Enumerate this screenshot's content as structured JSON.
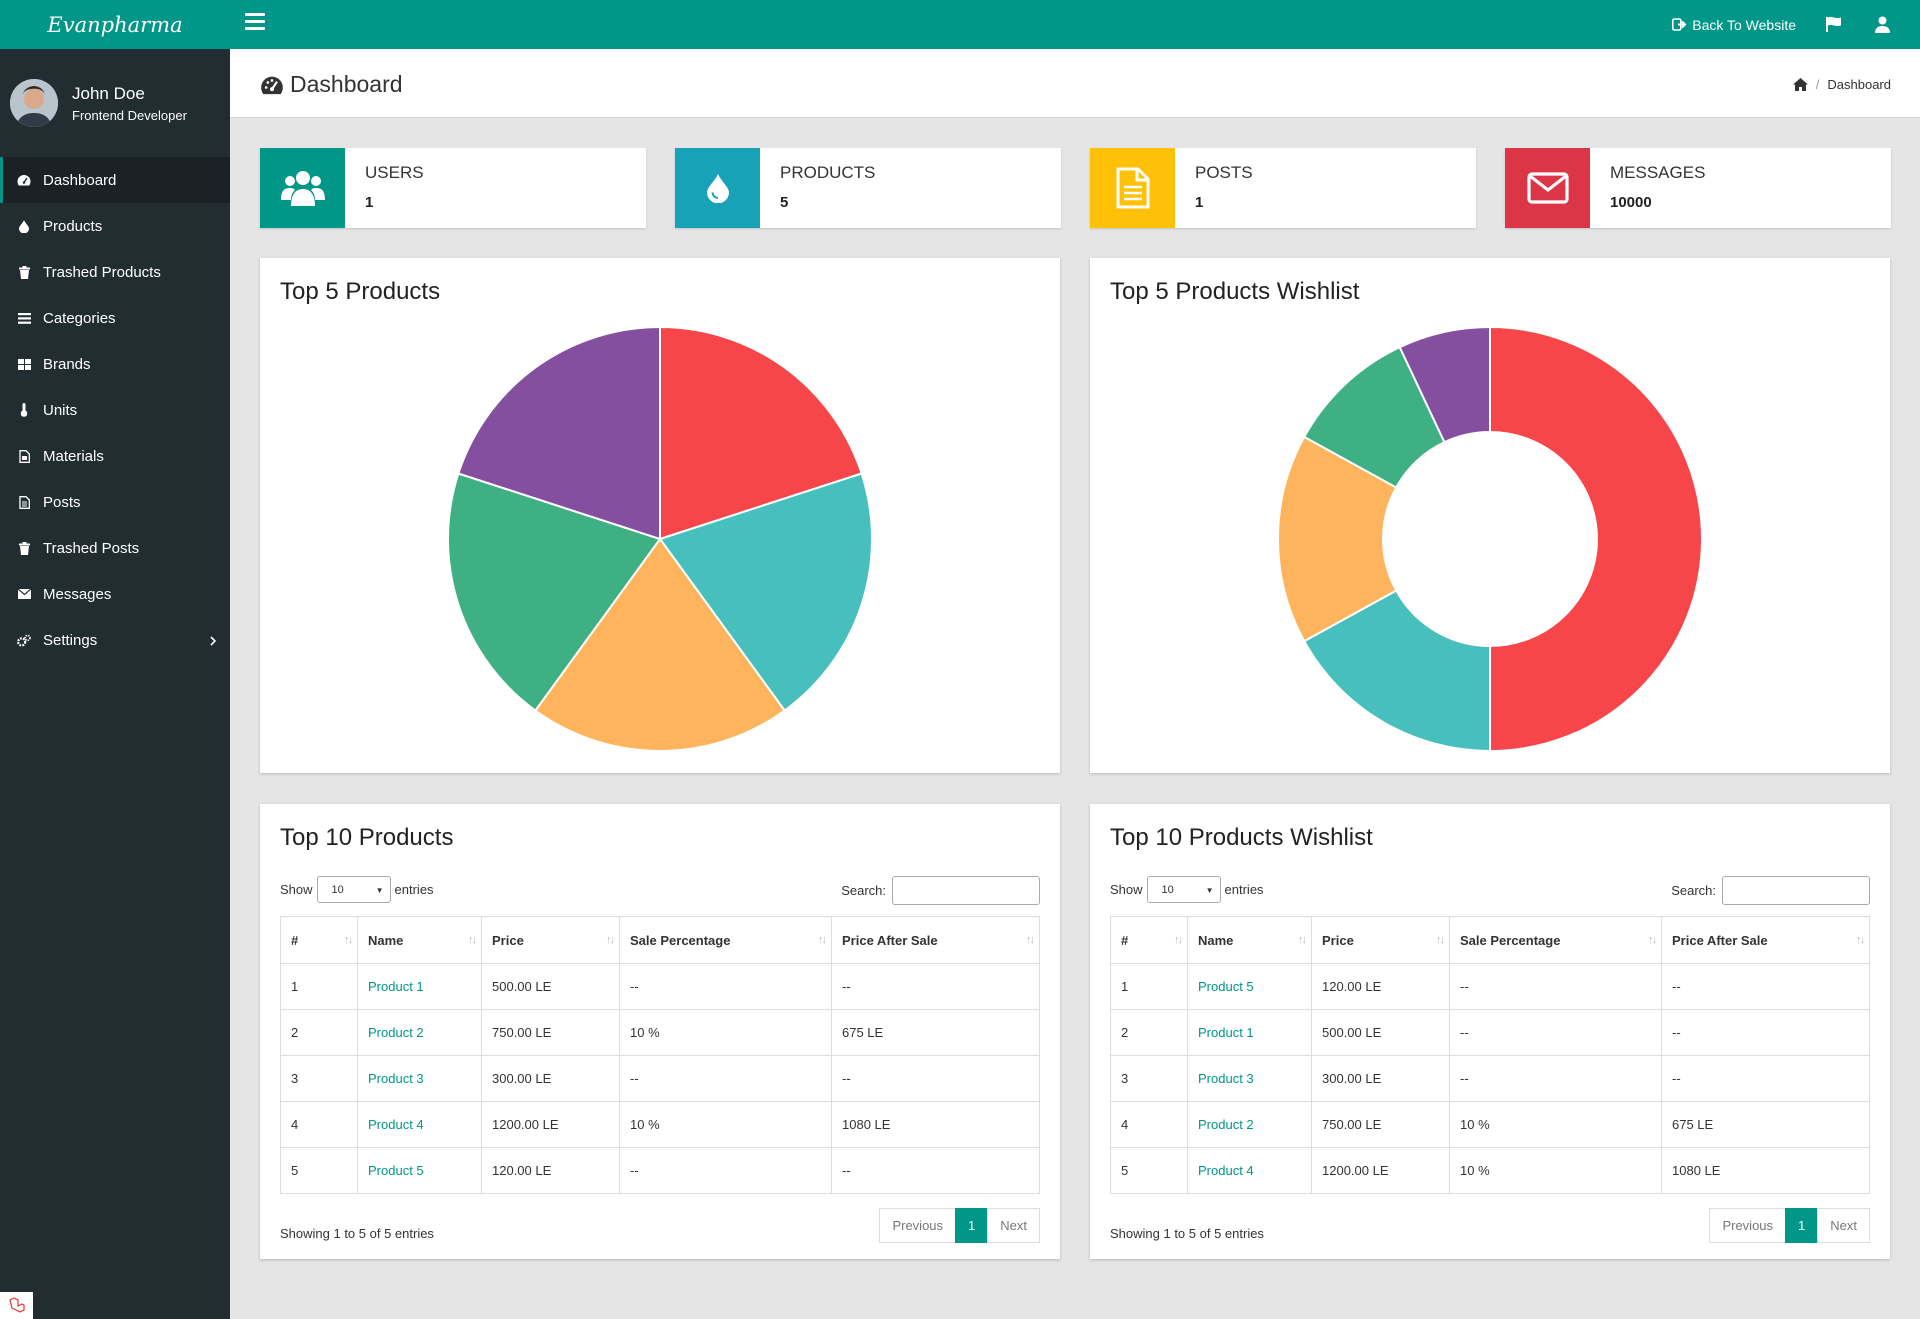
{
  "brand": "Evanpharma",
  "topbar": {
    "back_label": "Back To Website",
    "flag_icon": "flag-icon",
    "user_icon": "user-icon"
  },
  "user": {
    "name": "John Doe",
    "role": "Frontend Developer"
  },
  "sidebar": {
    "items": [
      {
        "label": "Dashboard",
        "icon": "dashboard-icon"
      },
      {
        "label": "Products",
        "icon": "tint-icon"
      },
      {
        "label": "Trashed Products",
        "icon": "trash-icon"
      },
      {
        "label": "Categories",
        "icon": "list-icon"
      },
      {
        "label": "Brands",
        "icon": "grid-icon"
      },
      {
        "label": "Units",
        "icon": "thermometer-icon"
      },
      {
        "label": "Materials",
        "icon": "file-icon"
      },
      {
        "label": "Posts",
        "icon": "document-icon"
      },
      {
        "label": "Trashed Posts",
        "icon": "trash-icon"
      },
      {
        "label": "Messages",
        "icon": "envelope-icon"
      },
      {
        "label": "Settings",
        "icon": "gears-icon"
      }
    ]
  },
  "header": {
    "title": "Dashboard",
    "breadcrumb": "Dashboard"
  },
  "stats": [
    {
      "label": "USERS",
      "value": "1",
      "color": "#009688",
      "icon": "users-icon"
    },
    {
      "label": "PRODUCTS",
      "value": "5",
      "color": "#17a2b8",
      "icon": "tint-icon"
    },
    {
      "label": "POSTS",
      "value": "1",
      "color": "#ffc107",
      "icon": "document-icon"
    },
    {
      "label": "MESSAGES",
      "value": "10000",
      "color": "#dc3545",
      "icon": "envelope-icon"
    }
  ],
  "chart_top5": {
    "title": "Top 5 Products"
  },
  "chart_wishlist": {
    "title": "Top 5 Products Wishlist"
  },
  "chart_data": [
    {
      "type": "pie",
      "title": "Top 5 Products",
      "values": [
        20,
        20,
        20,
        20,
        20
      ],
      "colors": [
        "#f7464a",
        "#46bfbd",
        "#fdb45c",
        "#3eb083",
        "#844f9e"
      ]
    },
    {
      "type": "pie",
      "title": "Top 5 Products Wishlist",
      "donut": true,
      "values": [
        50,
        17,
        16,
        10,
        7
      ],
      "colors": [
        "#f7464a",
        "#46bfbd",
        "#fdb45c",
        "#3eb083",
        "#844f9e"
      ]
    }
  ],
  "table_common": {
    "show": "Show",
    "entries": "entries",
    "length": "10",
    "search": "Search:",
    "headers": [
      "#",
      "Name",
      "Price",
      "Sale Percentage",
      "Price After Sale"
    ],
    "info": "Showing 1 to 5 of 5 entries",
    "previous": "Previous",
    "page": "1",
    "next": "Next"
  },
  "table_top10": {
    "title": "Top 10 Products",
    "rows": [
      [
        "1",
        "Product 1",
        "500.00 LE",
        "--",
        "--"
      ],
      [
        "2",
        "Product 2",
        "750.00 LE",
        "10 %",
        "675 LE"
      ],
      [
        "3",
        "Product 3",
        "300.00 LE",
        "--",
        "--"
      ],
      [
        "4",
        "Product 4",
        "1200.00 LE",
        "10 %",
        "1080 LE"
      ],
      [
        "5",
        "Product 5",
        "120.00 LE",
        "--",
        "--"
      ]
    ]
  },
  "table_wishlist": {
    "title": "Top 10 Products Wishlist",
    "rows": [
      [
        "1",
        "Product 5",
        "120.00 LE",
        "--",
        "--"
      ],
      [
        "2",
        "Product 1",
        "500.00 LE",
        "--",
        "--"
      ],
      [
        "3",
        "Product 3",
        "300.00 LE",
        "--",
        "--"
      ],
      [
        "4",
        "Product 2",
        "750.00 LE",
        "10 %",
        "675 LE"
      ],
      [
        "5",
        "Product 4",
        "1200.00 LE",
        "10 %",
        "1080 LE"
      ]
    ]
  }
}
